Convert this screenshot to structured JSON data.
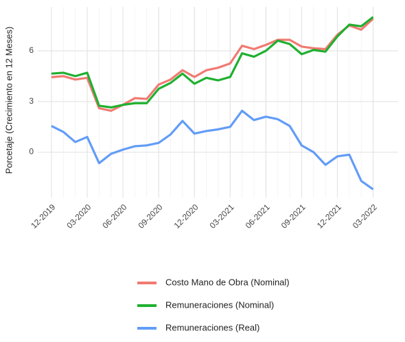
{
  "chart_data": {
    "type": "line",
    "y_label": "Porcetaje (Crecimiento en 12 Meses)",
    "categories": [
      "12-2019",
      null,
      null,
      "03-2020",
      null,
      null,
      "06-2020",
      null,
      null,
      "09-2020",
      null,
      null,
      "12-2020",
      null,
      null,
      "03-2021",
      null,
      null,
      "06-2021",
      null,
      null,
      "09-2021",
      null,
      null,
      "12-2021",
      null,
      null,
      "03-2022"
    ],
    "series": [
      {
        "name": "Costo Mano de Obra (Nominal)",
        "color": "#f07a72",
        "values": [
          4.44,
          4.5,
          4.3,
          4.4,
          2.6,
          2.45,
          2.8,
          3.2,
          3.15,
          4.0,
          4.3,
          4.85,
          4.45,
          4.85,
          5.0,
          5.25,
          6.3,
          6.1,
          6.35,
          6.65,
          6.65,
          6.25,
          6.15,
          6.1,
          6.95,
          7.5,
          7.25,
          7.9
        ]
      },
      {
        "name": "Remuneraciones (Nominal)",
        "color": "#1fb030",
        "values": [
          4.65,
          4.7,
          4.5,
          4.7,
          2.75,
          2.65,
          2.8,
          2.9,
          2.9,
          3.75,
          4.1,
          4.65,
          4.05,
          4.4,
          4.25,
          4.45,
          5.85,
          5.65,
          6.0,
          6.6,
          6.4,
          5.8,
          6.05,
          5.95,
          6.85,
          7.55,
          7.45,
          8.0
        ]
      },
      {
        "name": "Remuneraciones (Real)",
        "color": "#629cf7",
        "values": [
          1.55,
          1.2,
          0.6,
          0.9,
          -0.65,
          -0.1,
          0.15,
          0.35,
          0.4,
          0.55,
          1.05,
          1.85,
          1.1,
          1.25,
          1.35,
          1.5,
          2.45,
          1.9,
          2.1,
          1.95,
          1.55,
          0.4,
          0.0,
          -0.75,
          -0.25,
          -0.15,
          -1.7,
          -2.2
        ]
      }
    ],
    "ylim": [
      -2.7,
      8.6
    ],
    "yticks": [
      0,
      3,
      6
    ],
    "grid": true,
    "legend": "bottom"
  }
}
